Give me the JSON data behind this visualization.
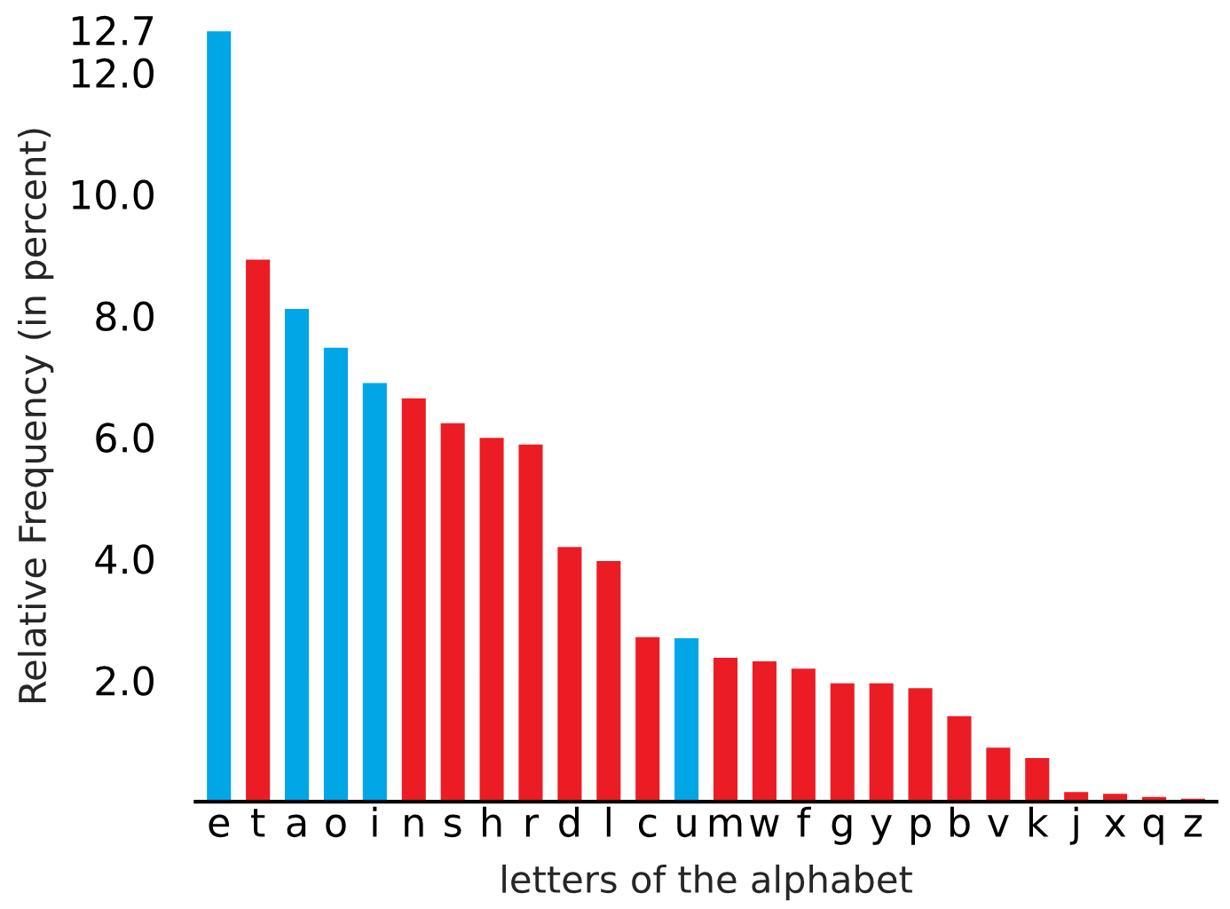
{
  "chart_data": {
    "type": "bar",
    "xlabel": "letters of the alphabet",
    "ylabel": "Relative Frequency (in percent)",
    "categories": [
      "e",
      "t",
      "a",
      "o",
      "i",
      "n",
      "s",
      "h",
      "r",
      "d",
      "l",
      "c",
      "u",
      "m",
      "w",
      "f",
      "g",
      "y",
      "p",
      "b",
      "v",
      "k",
      "j",
      "x",
      "q",
      "z"
    ],
    "values": [
      12.7,
      8.94,
      8.13,
      7.49,
      6.91,
      6.66,
      6.25,
      6.01,
      5.9,
      4.21,
      3.98,
      2.73,
      2.71,
      2.39,
      2.33,
      2.21,
      1.97,
      1.97,
      1.89,
      1.43,
      0.91,
      0.74,
      0.18,
      0.15,
      0.1,
      0.07
    ],
    "colors": [
      "#00a6e6",
      "#ec1c24",
      "#00a6e6",
      "#00a6e6",
      "#00a6e6",
      "#ec1c24",
      "#ec1c24",
      "#ec1c24",
      "#ec1c24",
      "#ec1c24",
      "#ec1c24",
      "#ec1c24",
      "#00a6e6",
      "#ec1c24",
      "#ec1c24",
      "#ec1c24",
      "#ec1c24",
      "#ec1c24",
      "#ec1c24",
      "#ec1c24",
      "#ec1c24",
      "#ec1c24",
      "#ec1c24",
      "#ec1c24",
      "#ec1c24",
      "#ec1c24"
    ],
    "ylim": [
      0,
      12.7
    ],
    "yticks": [
      {
        "value": 2,
        "label": "2.0"
      },
      {
        "value": 4,
        "label": "4.0"
      },
      {
        "value": 6,
        "label": "6.0"
      },
      {
        "value": 8,
        "label": "8.0"
      },
      {
        "value": 10,
        "label": "10.0"
      },
      {
        "value": 12,
        "label": "12.0"
      },
      {
        "value": 12.7,
        "label": "12.7"
      }
    ],
    "grid": false,
    "legend": false
  }
}
